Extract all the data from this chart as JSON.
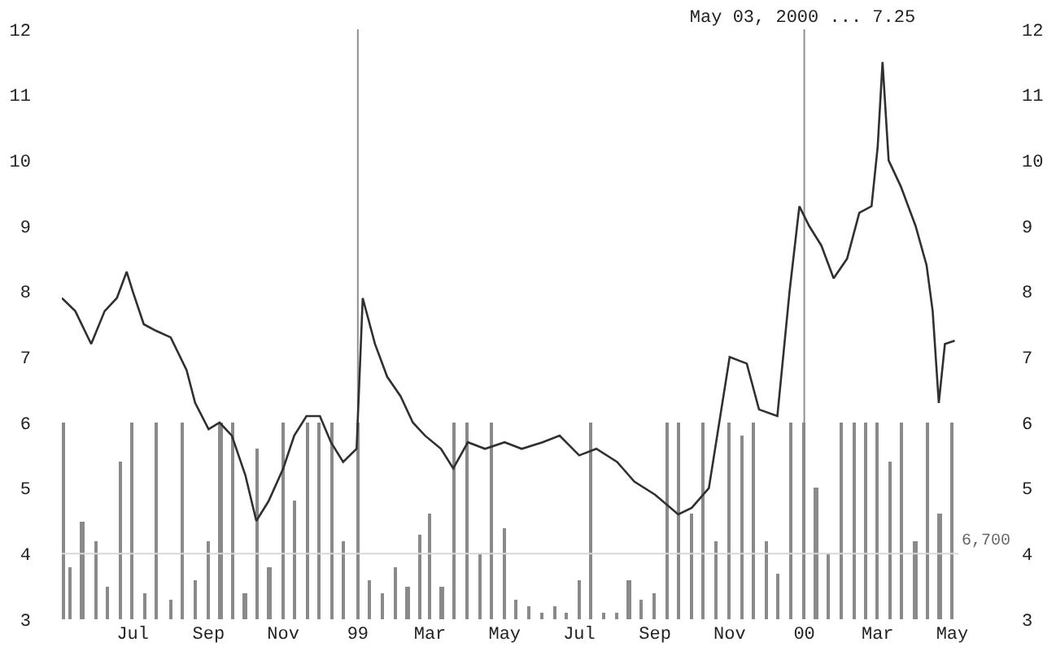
{
  "chart_data": {
    "type": "line",
    "title": "May 03, 2000 ... 7.25",
    "xlim": [
      "1998-05-04",
      "2000-05-06"
    ],
    "xticks": [
      {
        "value": "1998-07-01",
        "label": "Jul"
      },
      {
        "value": "1998-09-01",
        "label": "Sep"
      },
      {
        "value": "1998-11-01",
        "label": "Nov"
      },
      {
        "value": "1999-01-01",
        "label": "99"
      },
      {
        "value": "1999-03-01",
        "label": "Mar"
      },
      {
        "value": "1999-05-01",
        "label": "May"
      },
      {
        "value": "1999-07-01",
        "label": "Jul"
      },
      {
        "value": "1999-09-01",
        "label": "Sep"
      },
      {
        "value": "1999-11-01",
        "label": "Nov"
      },
      {
        "value": "2000-01-01",
        "label": "00"
      },
      {
        "value": "2000-03-01",
        "label": "Mar"
      },
      {
        "value": "2000-05-01",
        "label": "May"
      }
    ],
    "ylim": [
      3,
      12
    ],
    "yticks": [
      3,
      4,
      5,
      6,
      7,
      8,
      9,
      10,
      11,
      12
    ],
    "y2lim": [
      3,
      12
    ],
    "y2ticks": [
      3,
      4,
      5,
      6,
      7,
      8,
      9,
      10,
      11,
      12
    ],
    "grid": false,
    "marker": "none",
    "line_style": "solid",
    "ref_lines": [
      {
        "axis": "x",
        "value": "1999-01-01",
        "color": "#909090"
      },
      {
        "axis": "x",
        "value": "2000-01-01",
        "color": "#909090"
      },
      {
        "axis": "y",
        "value": 4,
        "color": "#d8d8d8"
      }
    ],
    "annotations": [
      "6,700"
    ],
    "series": [
      {
        "type": "bar",
        "color": "#8a8a8a",
        "x": [
          "1998-05-05",
          "1998-05-11",
          "1998-05-21",
          "1998-06-01",
          "1998-06-11",
          "1998-06-21",
          "1998-07-01",
          "1998-07-11",
          "1998-07-21",
          "1998-08-01",
          "1998-08-11",
          "1998-08-21",
          "1998-09-01",
          "1998-09-11",
          "1998-09-21",
          "1998-10-01",
          "1998-10-11",
          "1998-10-21",
          "1998-11-01",
          "1998-11-11",
          "1998-11-21",
          "1998-12-01",
          "1998-12-11",
          "1998-12-21",
          "1999-01-01",
          "1999-01-11",
          "1999-01-21",
          "1999-02-01",
          "1999-02-11",
          "1999-02-21",
          "1999-03-01",
          "1999-03-11",
          "1999-03-21",
          "1999-04-01",
          "1999-04-11",
          "1999-04-21",
          "1999-05-01",
          "1999-05-11",
          "1999-05-21",
          "1999-06-01",
          "1999-06-11",
          "1999-06-21",
          "1999-07-01",
          "1999-07-11",
          "1999-07-21",
          "1999-08-01",
          "1999-08-11",
          "1999-08-21",
          "1999-09-01",
          "1999-09-11",
          "1999-09-21",
          "1999-10-01",
          "1999-10-11",
          "1999-10-21",
          "1999-11-01",
          "1999-11-11",
          "1999-11-21",
          "1999-12-01",
          "1999-12-11",
          "1999-12-21",
          "2000-01-01",
          "2000-01-11",
          "2000-01-21",
          "2000-02-01",
          "2000-02-11",
          "2000-02-21",
          "2000-03-01",
          "2000-03-11",
          "2000-03-21",
          "2000-04-01",
          "2000-04-11",
          "2000-04-21",
          "2000-05-01"
        ],
        "values": [
          3,
          0.8,
          1.5,
          1.2,
          0.5,
          2.4,
          3,
          0.4,
          3,
          0.3,
          3,
          0.6,
          1.2,
          3,
          3,
          0.4,
          2.6,
          0.8,
          3,
          1.8,
          3,
          3,
          3,
          1.2,
          3,
          0.6,
          0.4,
          0.8,
          0.5,
          1.3,
          1.6,
          0.5,
          3,
          3,
          1,
          3,
          1.4,
          0.3,
          0.2,
          0.1,
          0.2,
          0.1,
          0.6,
          3,
          0.1,
          0.1,
          0.6,
          0.3,
          0.4,
          3,
          3,
          1.6,
          3,
          1.2,
          3,
          2.8,
          3,
          1.2,
          0.7,
          3,
          3,
          2,
          1,
          3,
          3,
          3,
          3,
          2.4,
          3,
          1.2,
          3,
          1.6,
          3
        ],
        "base": [
          3,
          3,
          3,
          3,
          3,
          3,
          3,
          3,
          3,
          3,
          3,
          3,
          3,
          3,
          3,
          3,
          3,
          3,
          3,
          3,
          3,
          3,
          3,
          3,
          3,
          3,
          3,
          3,
          3,
          3,
          3,
          3,
          3,
          3,
          3,
          3,
          3,
          3,
          3,
          3,
          3,
          3,
          3,
          3,
          3,
          3,
          3,
          3,
          3,
          3,
          3,
          3,
          3,
          3,
          3,
          3,
          3,
          3,
          3,
          3,
          3,
          3,
          3,
          3,
          3,
          3,
          3,
          3,
          3,
          3,
          3,
          3,
          3
        ]
      },
      {
        "color": "#303030",
        "x": [
          "1998-05-04",
          "1998-05-15",
          "1998-05-28",
          "1998-06-08",
          "1998-06-18",
          "1998-06-26",
          "1998-07-01",
          "1998-07-10",
          "1998-07-20",
          "1998-08-01",
          "1998-08-14",
          "1998-08-21",
          "1998-09-01",
          "1998-09-10",
          "1998-09-20",
          "1998-10-01",
          "1998-10-10",
          "1998-10-20",
          "1998-11-01",
          "1998-11-10",
          "1998-11-20",
          "1998-12-01",
          "1998-12-10",
          "1998-12-20",
          "1998-12-31",
          "1999-01-05",
          "1999-01-15",
          "1999-01-25",
          "1999-02-05",
          "1999-02-15",
          "1999-02-25",
          "1999-03-10",
          "1999-03-20",
          "1999-04-01",
          "1999-04-15",
          "1999-05-01",
          "1999-05-15",
          "1999-06-01",
          "1999-06-15",
          "1999-07-01",
          "1999-07-15",
          "1999-08-01",
          "1999-08-15",
          "1999-09-01",
          "1999-09-20",
          "1999-10-01",
          "1999-10-15",
          "1999-11-01",
          "1999-11-15",
          "1999-11-25",
          "1999-12-10",
          "1999-12-20",
          "1999-12-28",
          "2000-01-05",
          "2000-01-15",
          "2000-01-25",
          "2000-02-05",
          "2000-02-15",
          "2000-02-25",
          "2000-03-01",
          "2000-03-05",
          "2000-03-10",
          "2000-03-20",
          "2000-04-01",
          "2000-04-10",
          "2000-04-15",
          "2000-04-20",
          "2000-04-25",
          "2000-05-03"
        ],
        "values": [
          7.9,
          7.7,
          7.2,
          7.7,
          7.9,
          8.3,
          8.0,
          7.5,
          7.4,
          7.3,
          6.8,
          6.3,
          5.9,
          6.0,
          5.8,
          5.2,
          4.5,
          4.8,
          5.3,
          5.8,
          6.1,
          6.1,
          5.7,
          5.4,
          5.6,
          7.9,
          7.2,
          6.7,
          6.4,
          6.0,
          5.8,
          5.6,
          5.3,
          5.7,
          5.6,
          5.7,
          5.6,
          5.7,
          5.8,
          5.5,
          5.6,
          5.4,
          5.1,
          4.9,
          4.6,
          4.7,
          5.0,
          7.0,
          6.9,
          6.2,
          6.1,
          8.0,
          9.3,
          9.0,
          8.7,
          8.2,
          8.5,
          9.2,
          9.3,
          10.2,
          11.5,
          10.0,
          9.6,
          9.0,
          8.4,
          7.7,
          6.3,
          7.2,
          7.25
        ]
      }
    ]
  }
}
